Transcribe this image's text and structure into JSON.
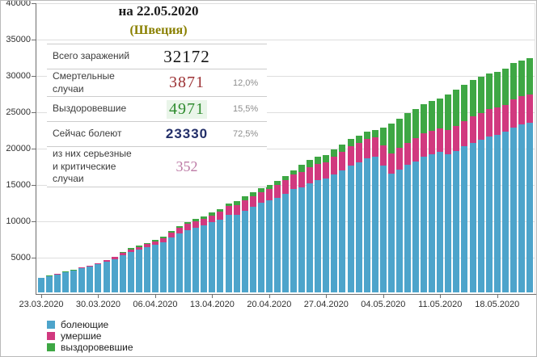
{
  "title": {
    "date_line": "на 22.05.2020",
    "country_line": "(Швеция)"
  },
  "stats_table": {
    "rows": [
      {
        "id": "total",
        "label": "Всего заражений",
        "value": "32172",
        "pct": "",
        "value_color": "#141414",
        "value_bg": ""
      },
      {
        "id": "deaths",
        "label": "Смертельные случаи",
        "value": "3871",
        "pct": "12,0%",
        "value_color": "#9c3134",
        "value_bg": ""
      },
      {
        "id": "recovered",
        "label": "Выздоровевшие",
        "value": "4971",
        "pct": "15,5%",
        "value_color": "#2e8b2e",
        "value_bg": "#e9f5e9"
      },
      {
        "id": "active",
        "label": "Сейчас болеют",
        "value": "23330",
        "pct": "72,5%",
        "value_color": "#232f69",
        "value_bg": ""
      },
      {
        "id": "critical",
        "label": "из них серьезные\nи критические случаи",
        "value": "352",
        "pct": "",
        "value_color": "#bd7ba6",
        "value_bg": ""
      }
    ]
  },
  "legend": [
    {
      "label": "болеющие",
      "color": "#4da4cb"
    },
    {
      "label": "умершие",
      "color": "#d1397f"
    },
    {
      "label": "выздоровевшие",
      "color": "#3ea744"
    }
  ],
  "chart_data": {
    "type": "bar",
    "stacked": true,
    "title": "на 22.05.2020 (Швеция)",
    "xlabel": "",
    "ylabel": "",
    "ylim": [
      0,
      40000
    ],
    "y_ticks": [
      5000,
      10000,
      15000,
      20000,
      25000,
      30000,
      35000,
      40000
    ],
    "grid": true,
    "legend_position": "bottom-left",
    "x": [
      "23.03",
      "24.03",
      "25.03",
      "26.03",
      "27.03",
      "28.03",
      "29.03",
      "30.03",
      "31.03",
      "01.04",
      "02.04",
      "03.04",
      "04.04",
      "05.04",
      "06.04",
      "07.04",
      "08.04",
      "09.04",
      "10.04",
      "11.04",
      "12.04",
      "13.04",
      "14.04",
      "15.04",
      "16.04",
      "17.04",
      "18.04",
      "19.04",
      "20.04",
      "21.04",
      "22.04",
      "23.04",
      "24.04",
      "25.04",
      "26.04",
      "27.04",
      "28.04",
      "29.04",
      "30.04",
      "01.05",
      "02.05",
      "03.05",
      "04.05",
      "05.05",
      "06.05",
      "07.05",
      "08.05",
      "09.05",
      "10.05",
      "11.05",
      "12.05",
      "13.05",
      "14.05",
      "15.05",
      "16.05",
      "17.05",
      "18.05",
      "19.05",
      "20.05",
      "21.05",
      "22.05"
    ],
    "x_tick_labels": [
      "23.03.2020",
      "30.03.2020",
      "06.04.2020",
      "13.04.2020",
      "20.04.2020",
      "27.04.2020",
      "04.05.2020",
      "11.05.2020",
      "18.05.2020"
    ],
    "x_tick_indices": [
      0,
      7,
      14,
      21,
      28,
      35,
      42,
      49,
      56
    ],
    "series": [
      {
        "name": "болеющие",
        "color": "#4da4cb",
        "values": [
          2005,
          2234,
          2448,
          2747,
          2948,
          3326,
          3574,
          3866,
          4239,
          4605,
          5157,
          5568,
          5865,
          6224,
          6524,
          6897,
          7527,
          8143,
          8610,
          8883,
          9203,
          9648,
          10031,
          10656,
          10657,
          11266,
          11761,
          12295,
          12647,
          13007,
          13517,
          14184,
          14410,
          14980,
          15441,
          15647,
          16261,
          16835,
          17501,
          17862,
          18408,
          18633,
          17452,
          16288,
          16903,
          17509,
          18016,
          18627,
          19023,
          19340,
          18988,
          19478,
          20082,
          20590,
          21032,
          21493,
          21708,
          22085,
          22721,
          23094,
          23330
        ]
      },
      {
        "name": "умершие",
        "color": "#d1397f",
        "values": [
          25,
          36,
          62,
          77,
          105,
          105,
          110,
          146,
          180,
          239,
          308,
          358,
          373,
          401,
          477,
          591,
          687,
          793,
          870,
          887,
          899,
          919,
          1033,
          1203,
          1333,
          1400,
          1511,
          1540,
          1580,
          1765,
          1937,
          2021,
          2152,
          2192,
          2194,
          2274,
          2355,
          2462,
          2586,
          2653,
          2669,
          2679,
          2769,
          2854,
          2941,
          3040,
          3175,
          3220,
          3225,
          3256,
          3313,
          3460,
          3529,
          3646,
          3674,
          3679,
          3698,
          3743,
          3831,
          3871,
          3871
        ]
      },
      {
        "name": "выздоровевшие",
        "color": "#3ea744",
        "values": [
          16,
          16,
          16,
          16,
          16,
          16,
          16,
          16,
          16,
          103,
          103,
          205,
          205,
          205,
          205,
          205,
          205,
          205,
          205,
          381,
          381,
          381,
          381,
          381,
          550,
          550,
          550,
          550,
          550,
          550,
          550,
          550,
          1005,
          1005,
          1005,
          1005,
          1005,
          1005,
          1005,
          1005,
          1005,
          1005,
          2500,
          4074,
          4074,
          4074,
          4074,
          4074,
          4074,
          4074,
          4971,
          4971,
          4971,
          4971,
          4971,
          4971,
          4971,
          4971,
          4971,
          4971,
          4971
        ]
      }
    ]
  },
  "colors": {
    "grid": "#dedede",
    "axis": "#6e6e6e",
    "tick_label": "#303030",
    "table_border": "#cccccc",
    "table_label": "#3c3c3c",
    "pct_text": "#8e8e8e",
    "title_date": "#1c1c1c",
    "title_country": "#8a8000"
  }
}
